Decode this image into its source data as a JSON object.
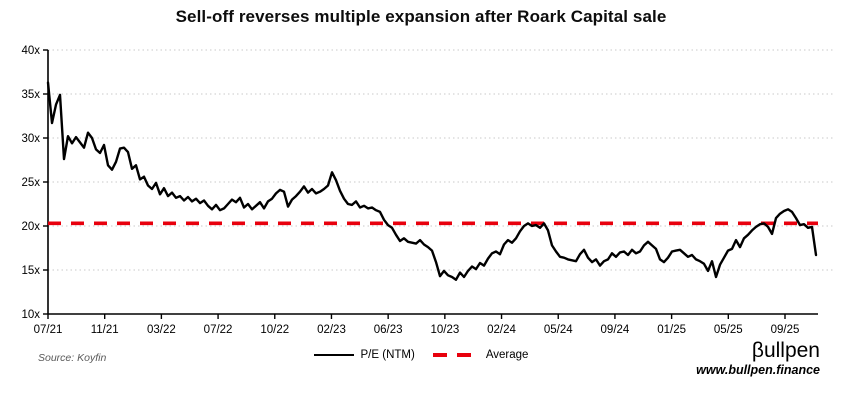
{
  "chart_data": {
    "type": "line",
    "title": "Sell-off reverses multiple expansion after Roark Capital sale",
    "ylim": [
      10,
      40
    ],
    "ytick_values": [
      40,
      35,
      30,
      25,
      20,
      15,
      10
    ],
    "ytick_labels": [
      "40x",
      "35x",
      "30x",
      "25x",
      "20x",
      "15x",
      "10x"
    ],
    "xtick_labels": [
      "07/21",
      "11/21",
      "03/22",
      "07/22",
      "10/22",
      "02/23",
      "06/23",
      "10/23",
      "02/24",
      "05/24",
      "09/24",
      "01/25",
      "05/25",
      "09/25"
    ],
    "legend": [
      "P/E (NTM)",
      "Average"
    ],
    "average_value": 20.3,
    "colors": {
      "pe_line": "#000000",
      "average": "#e8000d",
      "gridline": "#c9c9c9",
      "axis": "#000000"
    },
    "grid": "dotted-horizontal",
    "legend_position": "bottom-center",
    "series": [
      {
        "name": "P/E (NTM)",
        "x_note": "evenly spaced weekly samples, Jul 2021 to Oct 2025",
        "values": [
          36.3,
          31.7,
          33.8,
          34.9,
          27.6,
          30.2,
          29.4,
          30.1,
          29.5,
          28.9,
          30.6,
          30.0,
          28.7,
          28.3,
          29.2,
          26.9,
          26.4,
          27.3,
          28.8,
          28.9,
          28.4,
          26.5,
          26.9,
          25.3,
          25.6,
          24.6,
          24.2,
          24.9,
          23.6,
          24.3,
          23.4,
          23.8,
          23.2,
          23.4,
          22.9,
          23.3,
          22.8,
          23.1,
          22.6,
          22.9,
          22.3,
          21.9,
          22.4,
          21.8,
          22.0,
          22.5,
          23.0,
          22.7,
          23.2,
          22.1,
          22.5,
          21.9,
          22.3,
          22.7,
          22.0,
          22.8,
          23.1,
          23.7,
          24.1,
          23.9,
          22.2,
          23.0,
          23.4,
          23.9,
          24.5,
          23.8,
          24.2,
          23.7,
          23.9,
          24.2,
          24.6,
          26.1,
          25.2,
          24.0,
          23.1,
          22.5,
          22.4,
          22.8,
          22.1,
          22.3,
          22.0,
          22.1,
          21.8,
          21.6,
          20.7,
          20.1,
          19.8,
          19.0,
          18.3,
          18.6,
          18.2,
          18.1,
          18.0,
          18.4,
          17.9,
          17.6,
          17.2,
          15.9,
          14.3,
          14.9,
          14.4,
          14.2,
          13.9,
          14.7,
          14.2,
          14.9,
          15.4,
          15.1,
          15.8,
          15.5,
          16.3,
          16.9,
          17.1,
          16.8,
          17.9,
          18.4,
          18.1,
          18.6,
          19.4,
          20.0,
          20.3,
          20.0,
          20.1,
          19.8,
          20.3,
          19.5,
          17.8,
          17.1,
          16.5,
          16.4,
          16.2,
          16.1,
          16.0,
          16.8,
          17.3,
          16.4,
          15.9,
          16.2,
          15.5,
          16.0,
          16.2,
          16.9,
          16.5,
          17.0,
          17.1,
          16.7,
          17.3,
          16.9,
          17.1,
          17.8,
          18.2,
          17.8,
          17.4,
          16.2,
          15.9,
          16.4,
          17.1,
          17.2,
          17.3,
          16.9,
          16.5,
          16.7,
          16.2,
          16.0,
          15.7,
          14.9,
          16.0,
          14.2,
          15.6,
          16.4,
          17.2,
          17.4,
          18.4,
          17.6,
          18.6,
          19.0,
          19.5,
          19.9,
          20.2,
          20.3,
          19.9,
          19.1,
          20.9,
          21.4,
          21.7,
          21.9,
          21.6,
          20.9,
          20.1,
          20.2,
          19.8,
          19.9,
          16.7
        ]
      }
    ]
  },
  "footer": {
    "source": "Source: Koyfin",
    "brand": "βullpen",
    "url": "www.bullpen.finance"
  }
}
